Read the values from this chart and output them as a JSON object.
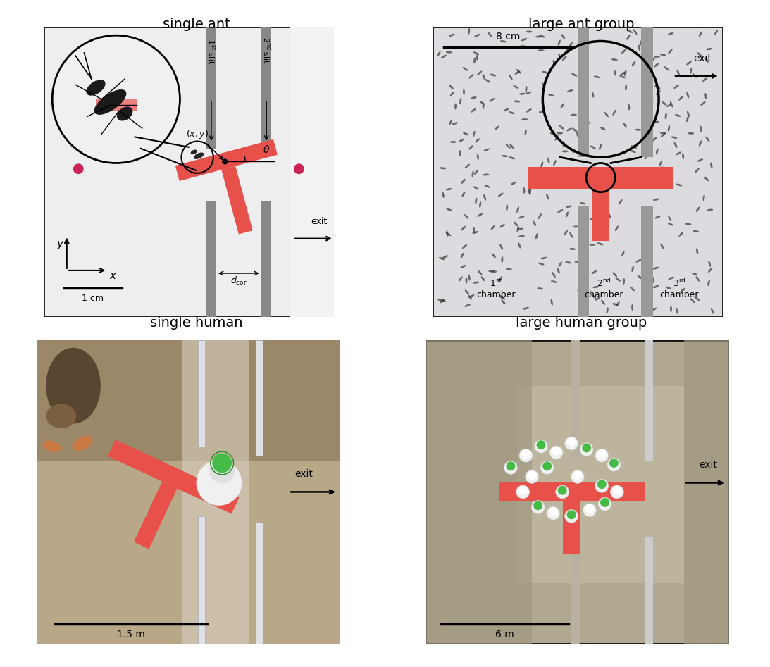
{
  "title_top_left": "single ant",
  "title_top_right": "large ant group",
  "title_bottom_left": "single human",
  "title_bottom_right": "large human group",
  "scale_top_left": "1 cm",
  "scale_top_right": "8 cm",
  "scale_bottom_left": "1.5 m",
  "scale_bottom_right": "6 m",
  "t_color": "#E8514A",
  "slit_color": "#888888",
  "figure_bg": "#FFFFFF",
  "ant_bg": "#E8E8EC",
  "ant_group_bg": "#DCDCE0",
  "human_bg_dark": "#8B7355",
  "human_bg_mid": "#A89070",
  "human_bg_light": "#D0C8B0",
  "human_group_bg": "#B0A890",
  "panel_border": "#111111"
}
